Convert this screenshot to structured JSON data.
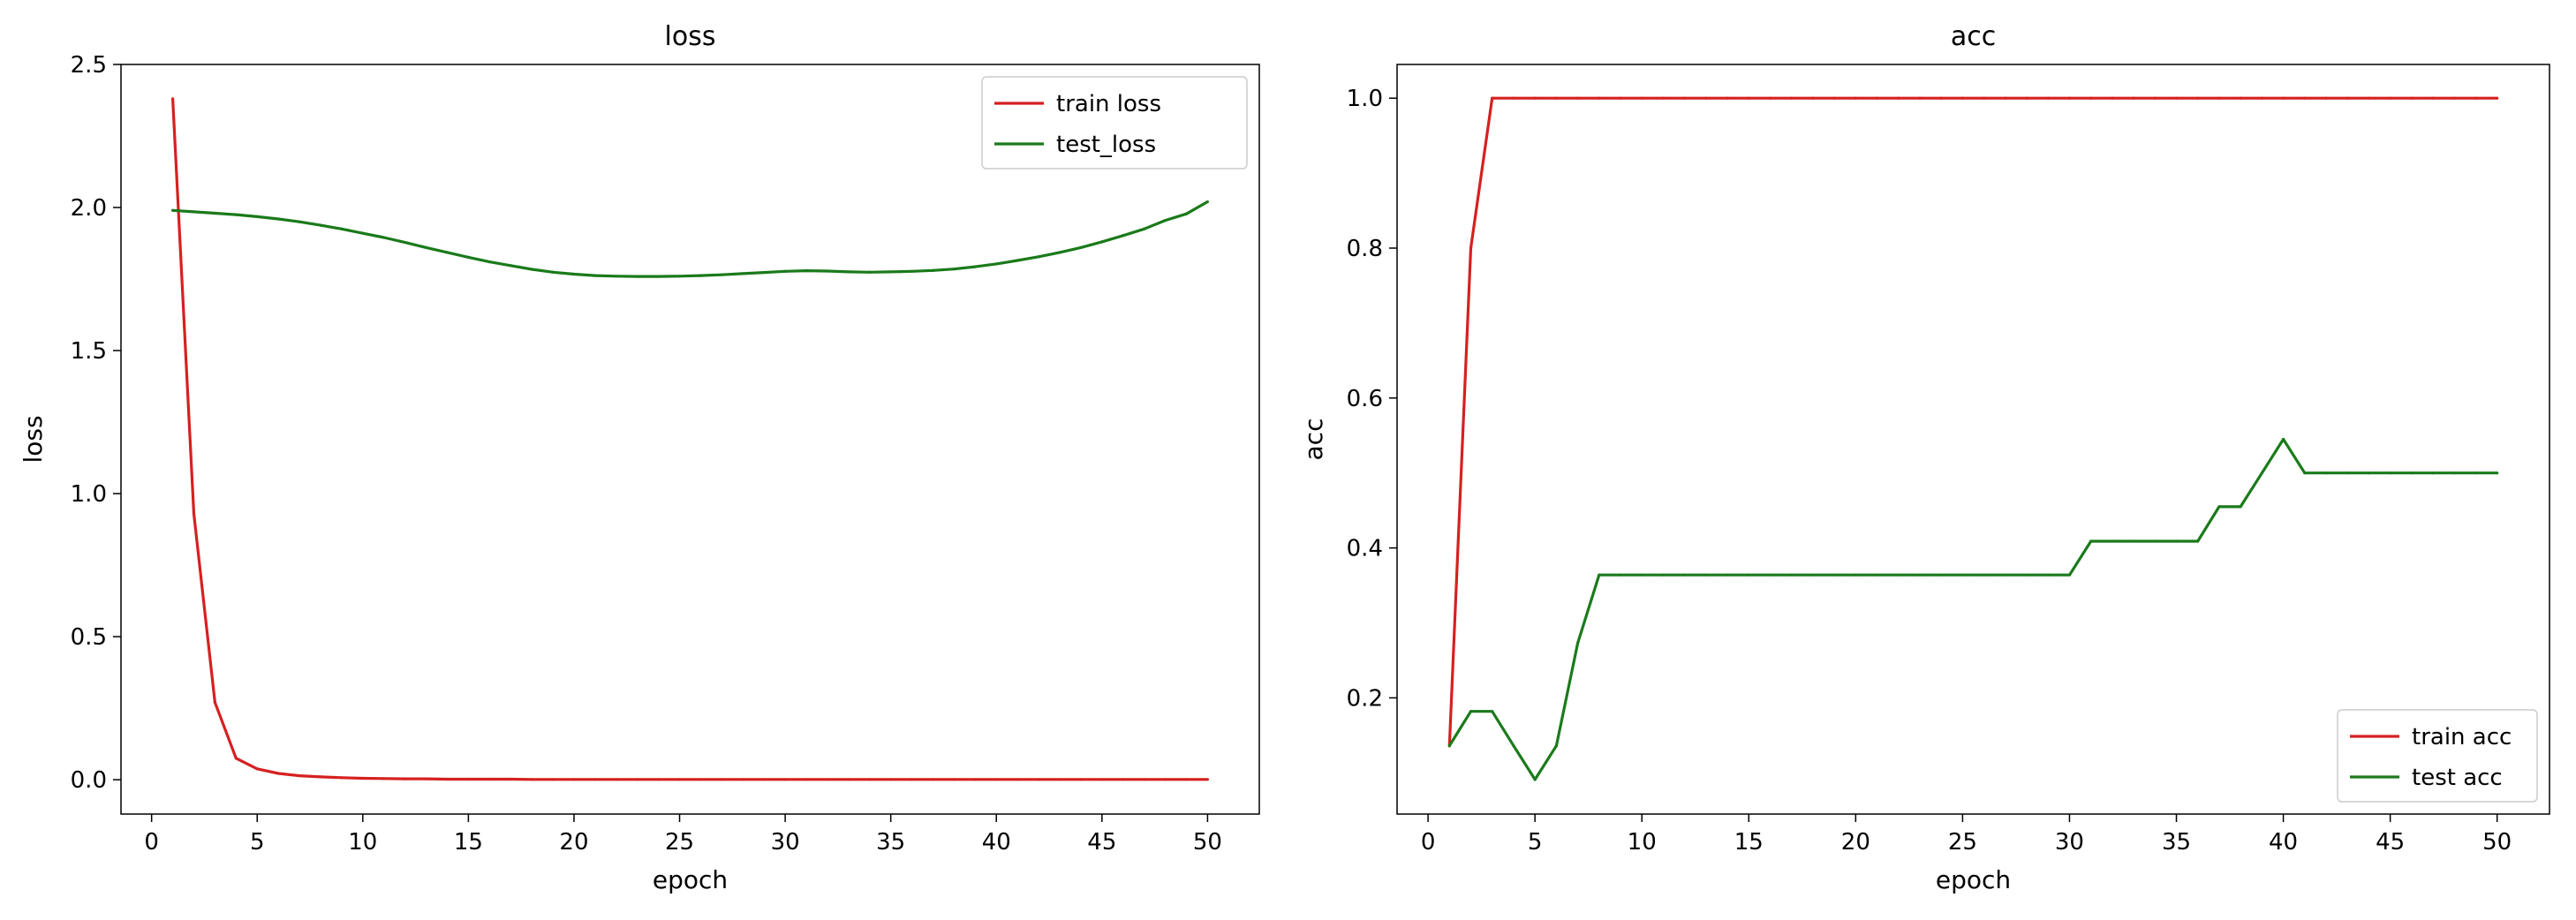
{
  "chart_data": [
    {
      "type": "line",
      "title": "loss",
      "xlabel": "epoch",
      "ylabel": "loss",
      "xlim": [
        -1.45,
        52.45
      ],
      "ylim": [
        -0.12,
        2.5
      ],
      "xticks": [
        0,
        5,
        10,
        15,
        20,
        25,
        30,
        35,
        40,
        45,
        50
      ],
      "yticks": [
        0.0,
        0.5,
        1.0,
        1.5,
        2.0,
        2.5
      ],
      "ytick_labels": [
        "0.0",
        "0.5",
        "1.0",
        "1.5",
        "2.0",
        "2.5"
      ],
      "grid": false,
      "legend_position": "top-right",
      "x": [
        1,
        2,
        3,
        4,
        5,
        6,
        7,
        8,
        9,
        10,
        11,
        12,
        13,
        14,
        15,
        16,
        17,
        18,
        19,
        20,
        21,
        22,
        23,
        24,
        25,
        26,
        27,
        28,
        29,
        30,
        31,
        32,
        33,
        34,
        35,
        36,
        37,
        38,
        39,
        40,
        41,
        42,
        43,
        44,
        45,
        46,
        47,
        48,
        49,
        50
      ],
      "series": [
        {
          "name": "train loss",
          "color": "#d62020",
          "values": [
            2.38,
            0.93,
            0.27,
            0.075,
            0.038,
            0.022,
            0.014,
            0.01,
            0.007,
            0.005,
            0.004,
            0.003,
            0.003,
            0.002,
            0.002,
            0.002,
            0.002,
            0.001,
            0.001,
            0.001,
            0.001,
            0.001,
            0.001,
            0.001,
            0.001,
            0.001,
            0.001,
            0.001,
            0.001,
            0.001,
            0.001,
            0.001,
            0.001,
            0.001,
            0.001,
            0.001,
            0.001,
            0.001,
            0.001,
            0.001,
            0.001,
            0.001,
            0.001,
            0.001,
            0.001,
            0.001,
            0.001,
            0.001,
            0.001,
            0.001
          ]
        },
        {
          "name": "test_loss",
          "color": "#1a7a1a",
          "values": [
            1.99,
            1.985,
            1.98,
            1.975,
            1.968,
            1.96,
            1.95,
            1.938,
            1.925,
            1.91,
            1.895,
            1.878,
            1.86,
            1.843,
            1.826,
            1.81,
            1.797,
            1.784,
            1.774,
            1.767,
            1.762,
            1.76,
            1.759,
            1.759,
            1.76,
            1.762,
            1.765,
            1.769,
            1.773,
            1.777,
            1.779,
            1.778,
            1.775,
            1.774,
            1.775,
            1.777,
            1.78,
            1.785,
            1.793,
            1.803,
            1.815,
            1.828,
            1.843,
            1.86,
            1.88,
            1.902,
            1.925,
            1.955,
            1.978,
            2.02
          ]
        }
      ]
    },
    {
      "type": "line",
      "title": "acc",
      "xlabel": "epoch",
      "ylabel": "acc",
      "xlim": [
        -1.45,
        52.45
      ],
      "ylim": [
        0.045,
        1.045
      ],
      "xticks": [
        0,
        5,
        10,
        15,
        20,
        25,
        30,
        35,
        40,
        45,
        50
      ],
      "yticks": [
        0.2,
        0.4,
        0.6,
        0.8,
        1.0
      ],
      "ytick_labels": [
        "0.2",
        "0.4",
        "0.6",
        "0.8",
        "1.0"
      ],
      "grid": false,
      "legend_position": "bottom-right",
      "x": [
        1,
        2,
        3,
        4,
        5,
        6,
        7,
        8,
        9,
        10,
        11,
        12,
        13,
        14,
        15,
        16,
        17,
        18,
        19,
        20,
        21,
        22,
        23,
        24,
        25,
        26,
        27,
        28,
        29,
        30,
        31,
        32,
        33,
        34,
        35,
        36,
        37,
        38,
        39,
        40,
        41,
        42,
        43,
        44,
        45,
        46,
        47,
        48,
        49,
        50
      ],
      "series": [
        {
          "name": "train acc",
          "color": "#d62020",
          "values": [
            0.136,
            0.8,
            1.0,
            1.0,
            1.0,
            1.0,
            1.0,
            1.0,
            1.0,
            1.0,
            1.0,
            1.0,
            1.0,
            1.0,
            1.0,
            1.0,
            1.0,
            1.0,
            1.0,
            1.0,
            1.0,
            1.0,
            1.0,
            1.0,
            1.0,
            1.0,
            1.0,
            1.0,
            1.0,
            1.0,
            1.0,
            1.0,
            1.0,
            1.0,
            1.0,
            1.0,
            1.0,
            1.0,
            1.0,
            1.0,
            1.0,
            1.0,
            1.0,
            1.0,
            1.0,
            1.0,
            1.0,
            1.0,
            1.0,
            1.0
          ]
        },
        {
          "name": "test acc",
          "color": "#1a7a1a",
          "values": [
            0.136,
            0.182,
            0.182,
            0.136,
            0.091,
            0.136,
            0.273,
            0.364,
            0.364,
            0.364,
            0.364,
            0.364,
            0.364,
            0.364,
            0.364,
            0.364,
            0.364,
            0.364,
            0.364,
            0.364,
            0.364,
            0.364,
            0.364,
            0.364,
            0.364,
            0.364,
            0.364,
            0.364,
            0.364,
            0.364,
            0.409,
            0.409,
            0.409,
            0.409,
            0.409,
            0.409,
            0.455,
            0.455,
            0.5,
            0.545,
            0.5,
            0.5,
            0.5,
            0.5,
            0.5,
            0.5,
            0.5,
            0.5,
            0.5,
            0.5
          ]
        }
      ]
    }
  ]
}
